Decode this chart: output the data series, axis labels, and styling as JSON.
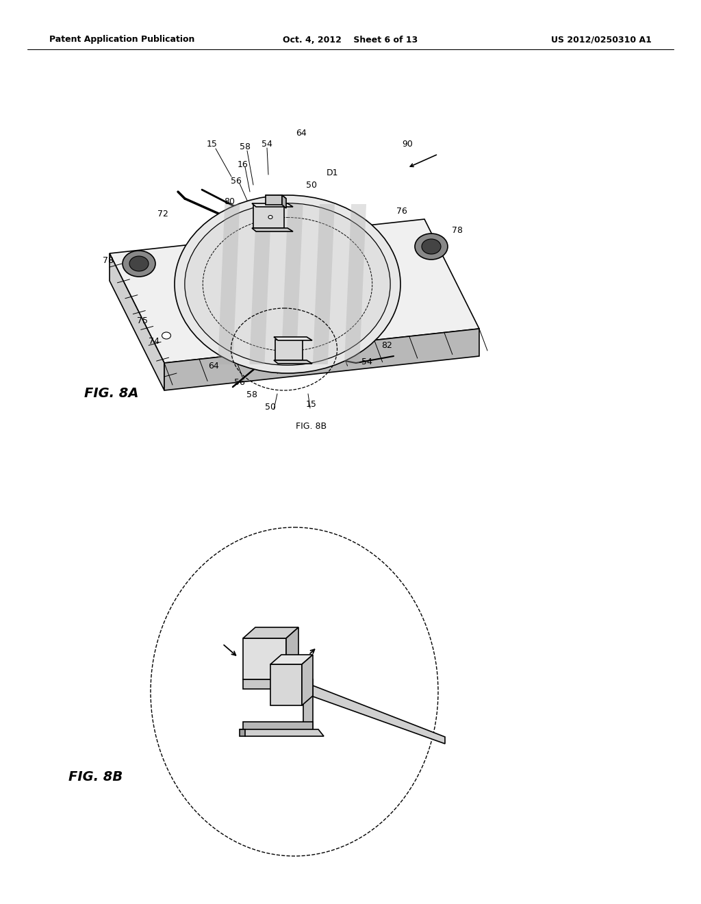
{
  "background_color": "#ffffff",
  "header_left": "Patent Application Publication",
  "header_center": "Oct. 4, 2012    Sheet 6 of 13",
  "header_right": "US 2012/0250310 A1",
  "fig8a_label": "FIG. 8A",
  "fig8b_label": "FIG. 8B",
  "fig8b_ref_label": "FIG. 8B",
  "line_color": "#000000",
  "line_width": 1.2
}
